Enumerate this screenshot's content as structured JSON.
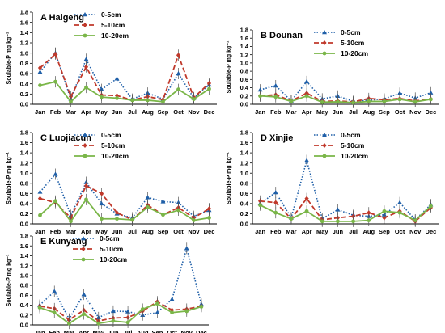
{
  "colors": {
    "s0_5": "#1f5fa8",
    "s5_10": "#c0392b",
    "s10_20": "#7ab648",
    "errorbar": "#555555"
  },
  "chart_data": [
    {
      "type": "line",
      "panel_label": "A",
      "title": "Haigeng",
      "ylabel": "Soulable-P mg kg⁻¹",
      "ylim": [
        0,
        1.8
      ],
      "yticks": [
        "0.0",
        "0.2",
        "0.4",
        "0.6",
        "0.8",
        "1.0",
        "1.2",
        "1.4",
        "1.6",
        "1.8"
      ],
      "categories": [
        "Jan",
        "Feb",
        "Mar",
        "Apr",
        "May",
        "Jun",
        "Jul",
        "Aug",
        "Sep",
        "Oct",
        "Nov",
        "Dec"
      ],
      "legend_position": "top-center",
      "series": [
        {
          "name": "0-5cm",
          "values": [
            0.63,
            1.0,
            0.1,
            0.88,
            0.29,
            0.5,
            0.1,
            0.22,
            0.1,
            0.6,
            0.12,
            0.38
          ]
        },
        {
          "name": "5-10cm",
          "values": [
            0.71,
            0.98,
            0.15,
            0.73,
            0.18,
            0.17,
            0.08,
            0.15,
            0.09,
            0.96,
            0.13,
            0.41
          ]
        },
        {
          "name": "10-20cm",
          "values": [
            0.37,
            0.44,
            0.05,
            0.33,
            0.14,
            0.12,
            0.08,
            0.08,
            0.05,
            0.29,
            0.1,
            0.3
          ]
        }
      ]
    },
    {
      "type": "line",
      "panel_label": "B",
      "title": "Dounan",
      "ylabel": "Soulable-P mg kg⁻¹",
      "ylim": [
        0,
        1.8
      ],
      "yticks": [
        "0.0",
        "0.2",
        "0.4",
        "0.6",
        "0.8",
        "1.0",
        "1.2",
        "1.4",
        "1.6",
        "1.8"
      ],
      "categories": [
        "Jan",
        "Feb",
        "Mar",
        "Apr",
        "May",
        "Jun",
        "Jul",
        "Aug",
        "Sep",
        "Oct",
        "Nov",
        "Dec"
      ],
      "legend_position": "top-center",
      "series": [
        {
          "name": "0-5cm",
          "values": [
            0.35,
            0.45,
            0.08,
            0.55,
            0.13,
            0.2,
            0.07,
            0.1,
            0.13,
            0.27,
            0.15,
            0.28
          ]
        },
        {
          "name": "5-10cm",
          "values": [
            0.2,
            0.23,
            0.08,
            0.27,
            0.07,
            0.08,
            0.06,
            0.14,
            0.11,
            0.14,
            0.08,
            0.13
          ]
        },
        {
          "name": "10-20cm",
          "values": [
            0.2,
            0.18,
            0.07,
            0.2,
            0.05,
            0.06,
            0.04,
            0.07,
            0.07,
            0.12,
            0.06,
            0.12
          ]
        }
      ]
    },
    {
      "type": "line",
      "panel_label": "C",
      "title": "Luojiacun",
      "ylabel": "Soulable-P mg kg⁻¹",
      "ylim": [
        0,
        1.8
      ],
      "yticks": [
        "0.0",
        "0.2",
        "0.4",
        "0.6",
        "0.8",
        "1.0",
        "1.2",
        "1.4",
        "1.6",
        "1.8"
      ],
      "categories": [
        "Jan",
        "Feb",
        "Mar",
        "Apr",
        "May",
        "Jun",
        "Jul",
        "Aug",
        "Sep",
        "Oct",
        "Nov",
        "Dec"
      ],
      "legend_position": "top-center",
      "series": [
        {
          "name": "0-5cm",
          "values": [
            0.63,
            0.98,
            0.17,
            0.82,
            0.4,
            0.2,
            0.12,
            0.52,
            0.44,
            0.42,
            0.15,
            0.27
          ]
        },
        {
          "name": "5-10cm",
          "values": [
            0.5,
            0.42,
            0.12,
            0.75,
            0.6,
            0.22,
            0.08,
            0.37,
            0.18,
            0.32,
            0.12,
            0.3
          ]
        },
        {
          "name": "10-20cm",
          "values": [
            0.17,
            0.45,
            0.05,
            0.48,
            0.1,
            0.1,
            0.08,
            0.33,
            0.18,
            0.27,
            0.07,
            0.12
          ]
        }
      ]
    },
    {
      "type": "line",
      "panel_label": "D",
      "title": "Xinjie",
      "ylabel": "Soulable-P mg kg⁻¹",
      "ylim": [
        0,
        1.8
      ],
      "yticks": [
        "0.0",
        "0.2",
        "0.4",
        "0.6",
        "0.8",
        "1.0",
        "1.2",
        "1.4",
        "1.6",
        "1.8"
      ],
      "categories": [
        "Jan",
        "Feb",
        "Mar",
        "Apr",
        "May",
        "Jun",
        "Jul",
        "Aug",
        "Sep",
        "Oct",
        "Nov",
        "Dec"
      ],
      "legend_position": "top-center",
      "series": [
        {
          "name": "0-5cm",
          "values": [
            0.4,
            0.62,
            0.12,
            1.25,
            0.1,
            0.28,
            0.17,
            0.15,
            0.18,
            0.42,
            0.08,
            0.38
          ]
        },
        {
          "name": "5-10cm",
          "values": [
            0.45,
            0.42,
            0.1,
            0.5,
            0.08,
            0.12,
            0.15,
            0.22,
            0.12,
            0.25,
            0.05,
            0.32
          ]
        },
        {
          "name": "10-20cm",
          "values": [
            0.37,
            0.22,
            0.1,
            0.25,
            0.05,
            0.05,
            0.05,
            0.07,
            0.25,
            0.22,
            0.07,
            0.35
          ]
        }
      ]
    },
    {
      "type": "line",
      "panel_label": "E",
      "title": "Kunyang",
      "ylabel": "Soulable-P mg kg⁻¹",
      "ylim": [
        0,
        1.8
      ],
      "yticks": [
        "0.0",
        "0.2",
        "0.4",
        "0.6",
        "0.8",
        "1.0",
        "1.2",
        "1.4",
        "1.6",
        "1.8"
      ],
      "categories": [
        "Jan",
        "Feb",
        "Mar",
        "Apr",
        "May",
        "Jun",
        "Jul",
        "Aug",
        "Sep",
        "Oct",
        "Nov",
        "Dec"
      ],
      "legend_position": "top-center",
      "series": [
        {
          "name": "0-5cm",
          "values": [
            0.4,
            0.68,
            0.12,
            0.62,
            0.15,
            0.28,
            0.27,
            0.2,
            0.25,
            0.52,
            1.55,
            0.42
          ]
        },
        {
          "name": "5-10cm",
          "values": [
            0.38,
            0.33,
            0.1,
            0.3,
            0.08,
            0.14,
            0.15,
            0.28,
            0.47,
            0.3,
            0.32,
            0.38
          ]
        },
        {
          "name": "10-20cm",
          "values": [
            0.35,
            0.25,
            0.03,
            0.22,
            0.03,
            0.08,
            0.05,
            0.32,
            0.43,
            0.25,
            0.28,
            0.37
          ]
        }
      ]
    }
  ]
}
